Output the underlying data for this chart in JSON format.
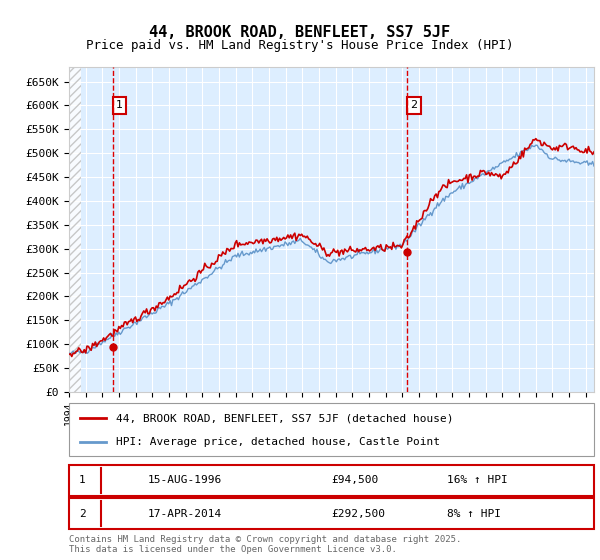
{
  "title": "44, BROOK ROAD, BENFLEET, SS7 5JF",
  "subtitle": "Price paid vs. HM Land Registry's House Price Index (HPI)",
  "ylabel": "",
  "ylim": [
    0,
    680000
  ],
  "yticks": [
    0,
    50000,
    100000,
    150000,
    200000,
    250000,
    300000,
    350000,
    400000,
    450000,
    500000,
    550000,
    600000,
    650000
  ],
  "ytick_labels": [
    "£0",
    "£50K",
    "£100K",
    "£150K",
    "£200K",
    "£250K",
    "£300K",
    "£350K",
    "£400K",
    "£450K",
    "£500K",
    "£550K",
    "£600K",
    "£650K"
  ],
  "xlim_start": 1994.0,
  "xlim_end": 2025.5,
  "sale1_x": 1996.62,
  "sale1_y": 94500,
  "sale2_x": 2014.29,
  "sale2_y": 292500,
  "annotation1_label": "1",
  "annotation2_label": "2",
  "vline1_x": 1996.62,
  "vline2_x": 2014.29,
  "legend_line1": "44, BROOK ROAD, BENFLEET, SS7 5JF (detached house)",
  "legend_line2": "HPI: Average price, detached house, Castle Point",
  "table_row1_num": "1",
  "table_row1_date": "15-AUG-1996",
  "table_row1_price": "£94,500",
  "table_row1_hpi": "16% ↑ HPI",
  "table_row2_num": "2",
  "table_row2_date": "17-APR-2014",
  "table_row2_price": "£292,500",
  "table_row2_hpi": "8% ↑ HPI",
  "footer": "Contains HM Land Registry data © Crown copyright and database right 2025.\nThis data is licensed under the Open Government Licence v3.0.",
  "price_color": "#cc0000",
  "hpi_color": "#6699cc",
  "background_color": "#ddeeff",
  "hatch_color": "#cccccc",
  "grid_color": "#ffffff",
  "vline_color": "#dd0000",
  "title_fontsize": 11,
  "subtitle_fontsize": 9,
  "tick_fontsize": 8,
  "legend_fontsize": 8
}
